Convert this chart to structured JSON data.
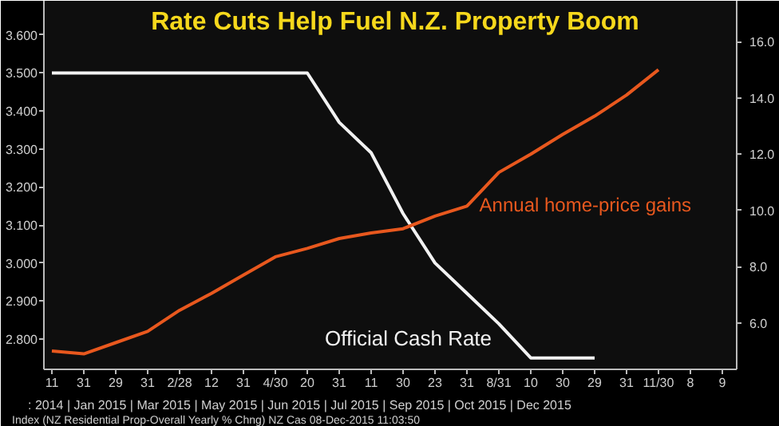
{
  "chart_data": {
    "type": "line",
    "title": "Rate Cuts Help Fuel N.Z. Property Boom",
    "categories": [
      "11",
      "31",
      "29",
      "31",
      "2/28",
      "12",
      "31",
      "4/30",
      "20",
      "31",
      "11",
      "30",
      "23",
      "31",
      "8/31",
      "10",
      "30",
      "29",
      "31",
      "11/30",
      "8",
      "9"
    ],
    "series": [
      {
        "name": "Official Cash Rate",
        "color": "#f2f2f2",
        "values": [
          3.5,
          3.5,
          3.5,
          3.5,
          3.5,
          3.5,
          3.5,
          3.5,
          3.5,
          3.37,
          3.29,
          3.13,
          3.0,
          2.92,
          2.84,
          2.75,
          2.75,
          2.75,
          null,
          null,
          null,
          null
        ]
      },
      {
        "name": "Annual home-price gains",
        "color": "#e8581e",
        "axis": "y2",
        "values": [
          5.0,
          4.9,
          5.3,
          5.7,
          6.45,
          7.05,
          7.7,
          8.35,
          8.65,
          9.0,
          9.2,
          9.35,
          9.8,
          10.15,
          11.35,
          12.0,
          12.7,
          13.35,
          14.1,
          15.0,
          null,
          null
        ]
      }
    ],
    "ylim": [
      2.72,
      3.69
    ],
    "yticks": [
      {
        "value": 2.8,
        "label": "2.800"
      },
      {
        "value": 2.9,
        "label": "2.900"
      },
      {
        "value": 3.0,
        "label": "3.000"
      },
      {
        "value": 3.1,
        "label": "3.100"
      },
      {
        "value": 3.2,
        "label": "3.200"
      },
      {
        "value": 3.3,
        "label": "3.300"
      },
      {
        "value": 3.4,
        "label": "3.400"
      },
      {
        "value": 3.5,
        "label": "3.500"
      },
      {
        "value": 3.6,
        "label": "3.600"
      }
    ],
    "y2lim": [
      4.35,
      17.45
    ],
    "y2ticks": [
      {
        "value": 6,
        "label": "6.0"
      },
      {
        "value": 8,
        "label": "8.0"
      },
      {
        "value": 10,
        "label": "10.0"
      },
      {
        "value": 12,
        "label": "12.0"
      },
      {
        "value": 14,
        "label": "14.0"
      },
      {
        "value": 16,
        "label": "16.0"
      }
    ],
    "grid": false,
    "legend": false,
    "marker": "none",
    "line_style": "solid",
    "annotations": [
      ": 2014 | Jan 2015 | Mar 2015 | May 2015 | Jun 2015 | Jul 2015 | Sep 2015 | Oct 2015 | Dec 2015",
      "Index (NZ Residential Prop-Overall Yearly % Chng) NZ Cas",
      "08-Dec-2015 11:03:50"
    ]
  }
}
